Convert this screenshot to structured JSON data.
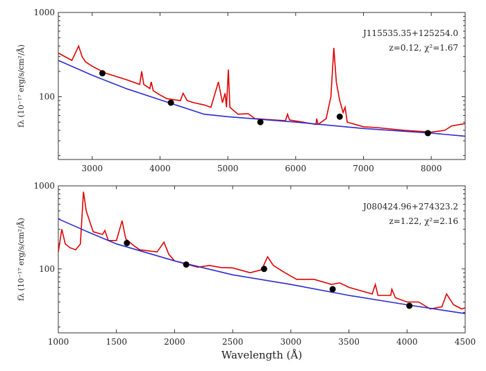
{
  "chart_data": [
    {
      "type": "line",
      "title": "",
      "ylabel": "fλ (10⁻¹⁷ erg/s/cm²/Å)",
      "xlabel": "",
      "yscale": "log",
      "xlim": [
        2500,
        8500
      ],
      "ylim": [
        18,
        1000
      ],
      "xticks": [
        3000,
        4000,
        5000,
        6000,
        7000,
        8000
      ],
      "yticks": [
        100,
        1000
      ],
      "annotation": [
        "J115535.35+125254.0",
        "z=0.12, χ²=1.67"
      ],
      "series": [
        {
          "name": "spectrum",
          "color": "#e00000",
          "points": [
            [
              2500,
              330
            ],
            [
              2700,
              270
            ],
            [
              2800,
              400
            ],
            [
              2850,
              300
            ],
            [
              2900,
              260
            ],
            [
              3000,
              230
            ],
            [
              3200,
              190
            ],
            [
              3500,
              160
            ],
            [
              3700,
              140
            ],
            [
              3730,
              200
            ],
            [
              3760,
              140
            ],
            [
              3850,
              125
            ],
            [
              3870,
              150
            ],
            [
              3900,
              118
            ],
            [
              4000,
              105
            ],
            [
              4100,
              95
            ],
            [
              4300,
              90
            ],
            [
              4340,
              110
            ],
            [
              4400,
              90
            ],
            [
              4500,
              85
            ],
            [
              4650,
              80
            ],
            [
              4750,
              75
            ],
            [
              4861,
              150
            ],
            [
              4920,
              85
            ],
            [
              4959,
              110
            ],
            [
              4980,
              75
            ],
            [
              5007,
              210
            ],
            [
              5030,
              75
            ],
            [
              5150,
              62
            ],
            [
              5300,
              63
            ],
            [
              5400,
              55
            ],
            [
              5850,
              52
            ],
            [
              5880,
              62
            ],
            [
              5910,
              53
            ],
            [
              6100,
              50
            ],
            [
              6300,
              47
            ],
            [
              6310,
              55
            ],
            [
              6330,
              47
            ],
            [
              6450,
              55
            ],
            [
              6520,
              100
            ],
            [
              6563,
              380
            ],
            [
              6600,
              150
            ],
            [
              6650,
              90
            ],
            [
              6700,
              65
            ],
            [
              6730,
              75
            ],
            [
              6760,
              50
            ],
            [
              7000,
              44
            ],
            [
              7200,
              43
            ],
            [
              7600,
              40
            ],
            [
              8000,
              38
            ],
            [
              8200,
              40
            ],
            [
              8300,
              45
            ],
            [
              8500,
              48
            ]
          ]
        },
        {
          "name": "continuum fit",
          "color": "#2a2ad0",
          "points": [
            [
              2500,
              270
            ],
            [
              3000,
              180
            ],
            [
              3500,
              125
            ],
            [
              4000,
              92
            ],
            [
              4650,
              62
            ],
            [
              5000,
              58
            ],
            [
              6000,
              50
            ],
            [
              7000,
              42
            ],
            [
              8000,
              37
            ],
            [
              8500,
              34
            ]
          ]
        },
        {
          "name": "photometry",
          "color": "#000000",
          "type": "scatter",
          "points": [
            [
              3150,
              190
            ],
            [
              4160,
              85
            ],
            [
              5480,
              50
            ],
            [
              6650,
              58
            ],
            [
              7950,
              37
            ]
          ]
        }
      ]
    },
    {
      "type": "line",
      "title": "",
      "ylabel": "fλ (10⁻¹⁷ erg/s/cm²/Å)",
      "xlabel": "Wavelength (Å)",
      "yscale": "log",
      "xlim": [
        1000,
        4500
      ],
      "ylim": [
        17,
        1000
      ],
      "xticks": [
        1000,
        1500,
        2000,
        2500,
        3000,
        3500,
        4000,
        4500
      ],
      "yticks": [
        100,
        1000
      ],
      "annotation": [
        "J080424.96+274323.2",
        "z=1.22, χ²=2.16"
      ],
      "series": [
        {
          "name": "spectrum",
          "color": "#e00000",
          "points": [
            [
              1000,
              160
            ],
            [
              1030,
              300
            ],
            [
              1060,
              200
            ],
            [
              1100,
              180
            ],
            [
              1150,
              170
            ],
            [
              1190,
              200
            ],
            [
              1216,
              850
            ],
            [
              1240,
              500
            ],
            [
              1300,
              280
            ],
            [
              1380,
              260
            ],
            [
              1400,
              290
            ],
            [
              1430,
              220
            ],
            [
              1500,
              220
            ],
            [
              1549,
              380
            ],
            [
              1580,
              230
            ],
            [
              1650,
              190
            ],
            [
              1700,
              170
            ],
            [
              1850,
              160
            ],
            [
              1909,
              210
            ],
            [
              1950,
              150
            ],
            [
              2000,
              125
            ],
            [
              2200,
              105
            ],
            [
              2300,
              110
            ],
            [
              2400,
              104
            ],
            [
              2500,
              103
            ],
            [
              2650,
              90
            ],
            [
              2750,
              98
            ],
            [
              2800,
              140
            ],
            [
              2850,
              110
            ],
            [
              2950,
              90
            ],
            [
              3050,
              75
            ],
            [
              3200,
              75
            ],
            [
              3350,
              65
            ],
            [
              3420,
              68
            ],
            [
              3500,
              60
            ],
            [
              3700,
              50
            ],
            [
              3727,
              65
            ],
            [
              3750,
              48
            ],
            [
              3860,
              48
            ],
            [
              3869,
              57
            ],
            [
              3900,
              45
            ],
            [
              4000,
              40
            ],
            [
              4100,
              40
            ],
            [
              4200,
              33
            ],
            [
              4300,
              35
            ],
            [
              4340,
              50
            ],
            [
              4400,
              37
            ],
            [
              4470,
              33
            ],
            [
              4500,
              34
            ]
          ]
        },
        {
          "name": "continuum fit",
          "color": "#2a2ad0",
          "points": [
            [
              1000,
              400
            ],
            [
              1250,
              280
            ],
            [
              1500,
              200
            ],
            [
              2000,
              125
            ],
            [
              2500,
              85
            ],
            [
              3000,
              65
            ],
            [
              3500,
              48
            ],
            [
              4000,
              37
            ],
            [
              4500,
              29
            ]
          ]
        },
        {
          "name": "photometry",
          "color": "#000000",
          "type": "scatter",
          "points": [
            [
              1590,
              205
            ],
            [
              2100,
              113
            ],
            [
              2770,
              100
            ],
            [
              3360,
              57
            ],
            [
              4020,
              36
            ]
          ]
        }
      ]
    }
  ]
}
